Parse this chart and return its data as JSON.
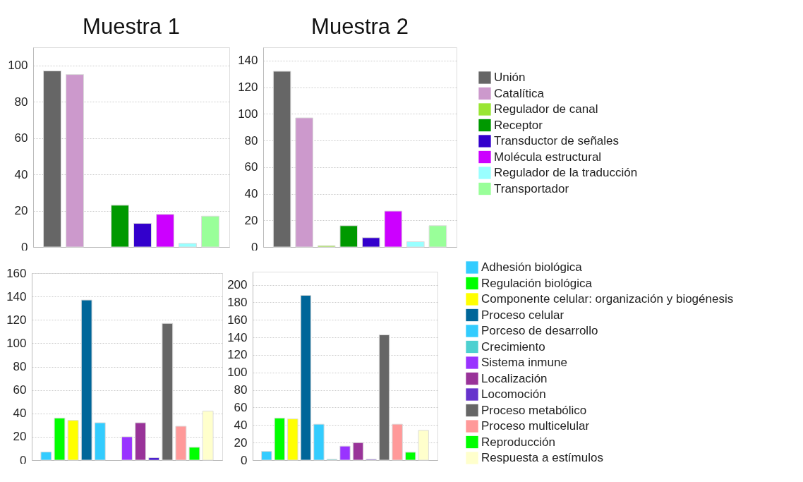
{
  "chart_data": [
    {
      "type": "bar",
      "title": "Muestra 1",
      "categories": [
        null
      ],
      "series": [
        {
          "color": "#666666",
          "values": [
            97
          ]
        },
        {
          "color": "#cc99cc",
          "values": [
            95
          ]
        },
        {
          "color": "#99e633",
          "values": [
            null
          ]
        },
        {
          "color": "#009900",
          "values": [
            23
          ]
        },
        {
          "color": "#3300cc",
          "values": [
            13
          ]
        },
        {
          "color": "#cc00ff",
          "values": [
            18
          ]
        },
        {
          "color": "#99ffff",
          "values": [
            2
          ]
        },
        {
          "color": "#99ff99",
          "values": [
            17
          ]
        }
      ],
      "ylim": [
        0,
        110
      ],
      "yticks": [
        0,
        20,
        40,
        60,
        80,
        100
      ],
      "grid": "y",
      "tick_labels": "y"
    },
    {
      "type": "bar",
      "title": "Muestra 2",
      "categories": [
        null
      ],
      "series": [
        {
          "name": "Unión",
          "color": "#666666",
          "values": [
            132
          ]
        },
        {
          "name": "Catalítica",
          "color": "#cc99cc",
          "values": [
            97
          ]
        },
        {
          "name": "Regulador de canal",
          "color": "#99e633",
          "values": [
            1
          ]
        },
        {
          "name": "Receptor",
          "color": "#009900",
          "values": [
            16
          ]
        },
        {
          "name": "Transductor de señales",
          "color": "#3300cc",
          "values": [
            7
          ]
        },
        {
          "name": "Molécula estructural",
          "color": "#cc00ff",
          "values": [
            27
          ]
        },
        {
          "name": "Regulador de la traducción",
          "color": "#99ffff",
          "values": [
            4
          ]
        },
        {
          "name": "Transportador",
          "color": "#99ff99",
          "values": [
            16
          ]
        }
      ],
      "ylim": [
        0,
        150
      ],
      "yticks": [
        0,
        20,
        40,
        60,
        80,
        100,
        120,
        140
      ],
      "grid": "y",
      "tick_labels": "y",
      "legend": "right"
    },
    {
      "type": "bar",
      "categories": [
        null
      ],
      "series": [
        {
          "color": "#33ccff",
          "values": [
            7
          ]
        },
        {
          "color": "#00ff00",
          "values": [
            36
          ]
        },
        {
          "color": "#ffff00",
          "values": [
            34
          ]
        },
        {
          "color": "#006699",
          "values": [
            137
          ]
        },
        {
          "color": "#33ccfe",
          "values": [
            32
          ]
        },
        {
          "color": "#4dd0d0",
          "values": [
            null
          ]
        },
        {
          "color": "#9933ff",
          "values": [
            20
          ]
        },
        {
          "color": "#993399",
          "values": [
            32
          ]
        },
        {
          "color": "#3300cc",
          "values": [
            2
          ]
        },
        {
          "color": "#666666",
          "values": [
            117
          ]
        },
        {
          "color": "#ff9999",
          "values": [
            29
          ]
        },
        {
          "color": "#00ff01",
          "values": [
            11
          ]
        },
        {
          "color": "#ffffcc",
          "values": [
            42
          ]
        }
      ],
      "ylim": [
        0,
        160
      ],
      "yticks": [
        0,
        20,
        40,
        60,
        80,
        100,
        120,
        140,
        160
      ],
      "grid": "y",
      "tick_labels": "y"
    },
    {
      "type": "bar",
      "categories": [
        null
      ],
      "series": [
        {
          "name": "Adhesión biológica",
          "color": "#33ccff",
          "values": [
            10
          ]
        },
        {
          "name": "Regulación biológica",
          "color": "#00ff00",
          "values": [
            48
          ]
        },
        {
          "name": "Componente celular: organización y biogénesis",
          "color": "#ffff00",
          "values": [
            47
          ]
        },
        {
          "name": "Proceso celular",
          "color": "#006699",
          "values": [
            188
          ]
        },
        {
          "name": "Porceso de desarrollo",
          "color": "#33ccfe",
          "values": [
            41
          ]
        },
        {
          "name": "Crecimiento",
          "color": "#4dd0d0",
          "values": [
            1
          ]
        },
        {
          "name": "Sistema inmune",
          "color": "#9933ff",
          "values": [
            16
          ]
        },
        {
          "name": "Localización",
          "color": "#993399",
          "values": [
            20
          ]
        },
        {
          "name": "Locomoción",
          "color": "#6633cc",
          "values": [
            1
          ]
        },
        {
          "name": "Proceso metabólico",
          "color": "#666666",
          "values": [
            143
          ]
        },
        {
          "name": "Proceso multicelular",
          "color": "#ff9999",
          "values": [
            41
          ]
        },
        {
          "name": "Reproducción",
          "color": "#00ff01",
          "values": [
            9
          ]
        },
        {
          "name": "Respuesta a estímulos",
          "color": "#ffffcc",
          "values": [
            34
          ]
        }
      ],
      "ylim": [
        0,
        215
      ],
      "yticks": [
        0,
        20,
        40,
        60,
        80,
        100,
        120,
        140,
        160,
        180,
        200
      ],
      "grid": "y",
      "tick_labels": "y",
      "legend": "right"
    }
  ]
}
